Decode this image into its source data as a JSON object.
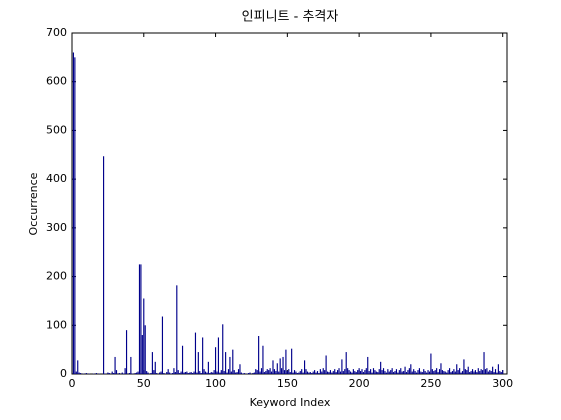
{
  "chart_data": {
    "type": "bar",
    "title": "인피니트 - 추격자",
    "xlabel": "Keyword Index",
    "ylabel": "Occurrence",
    "color": "#00008b",
    "xlim": [
      0,
      303
    ],
    "xticks": [
      0,
      50,
      100,
      150,
      200,
      250,
      300
    ],
    "ylim": [
      0,
      700
    ],
    "yticks": [
      0,
      100,
      200,
      300,
      400,
      500,
      600,
      700
    ],
    "grid": false,
    "x": [
      1,
      2,
      3,
      4,
      5,
      6,
      7,
      8,
      9,
      10,
      11,
      12,
      13,
      14,
      15,
      16,
      17,
      18,
      19,
      20,
      21,
      22,
      23,
      24,
      25,
      26,
      27,
      28,
      29,
      30,
      31,
      32,
      33,
      34,
      35,
      36,
      37,
      38,
      39,
      40,
      41,
      42,
      43,
      44,
      45,
      46,
      47,
      48,
      49,
      50,
      51,
      52,
      53,
      54,
      55,
      56,
      57,
      58,
      59,
      60,
      61,
      62,
      63,
      64,
      65,
      66,
      67,
      68,
      69,
      70,
      71,
      72,
      73,
      74,
      75,
      76,
      77,
      78,
      79,
      80,
      81,
      82,
      83,
      84,
      85,
      86,
      87,
      88,
      89,
      90,
      91,
      92,
      93,
      94,
      95,
      96,
      97,
      98,
      99,
      100,
      101,
      102,
      103,
      104,
      105,
      106,
      107,
      108,
      109,
      110,
      111,
      112,
      113,
      114,
      115,
      116,
      117,
      118,
      119,
      120,
      121,
      122,
      123,
      124,
      125,
      126,
      127,
      128,
      129,
      130,
      131,
      132,
      133,
      134,
      135,
      136,
      137,
      138,
      139,
      140,
      141,
      142,
      143,
      144,
      145,
      146,
      147,
      148,
      149,
      150,
      151,
      152,
      153,
      154,
      155,
      156,
      157,
      158,
      159,
      160,
      161,
      162,
      163,
      164,
      165,
      166,
      167,
      168,
      169,
      170,
      171,
      172,
      173,
      174,
      175,
      176,
      177,
      178,
      179,
      180,
      181,
      182,
      183,
      184,
      185,
      186,
      187,
      188,
      189,
      190,
      191,
      192,
      193,
      194,
      195,
      196,
      197,
      198,
      199,
      200,
      201,
      202,
      203,
      204,
      205,
      206,
      207,
      208,
      209,
      210,
      211,
      212,
      213,
      214,
      215,
      216,
      217,
      218,
      219,
      220,
      221,
      222,
      223,
      224,
      225,
      226,
      227,
      228,
      229,
      230,
      231,
      232,
      233,
      234,
      235,
      236,
      237,
      238,
      239,
      240,
      241,
      242,
      243,
      244,
      245,
      246,
      247,
      248,
      249,
      250,
      251,
      252,
      253,
      254,
      255,
      256,
      257,
      258,
      259,
      260,
      261,
      262,
      263,
      264,
      265,
      266,
      267,
      268,
      269,
      270,
      271,
      272,
      273,
      274,
      275,
      276,
      277,
      278,
      279,
      280,
      281,
      282,
      283,
      284,
      285,
      286,
      287,
      288,
      289,
      290,
      291,
      292,
      293,
      294,
      295,
      296,
      297,
      298,
      299,
      300
    ],
    "values": [
      660,
      650,
      5,
      28,
      3,
      2,
      0,
      1,
      0,
      2,
      0,
      1,
      0,
      0,
      1,
      0,
      2,
      0,
      1,
      0,
      0,
      447,
      1,
      0,
      3,
      2,
      0,
      5,
      2,
      35,
      8,
      0,
      2,
      0,
      3,
      1,
      12,
      90,
      0,
      2,
      35,
      1,
      0,
      2,
      3,
      5,
      225,
      225,
      80,
      155,
      100,
      6,
      3,
      0,
      2,
      45,
      8,
      25,
      2,
      0,
      3,
      5,
      118,
      2,
      0,
      4,
      10,
      3,
      1,
      2,
      12,
      4,
      182,
      8,
      2,
      5,
      58,
      3,
      4,
      5,
      2,
      3,
      4,
      2,
      5,
      85,
      3,
      45,
      6,
      2,
      75,
      10,
      5,
      3,
      25,
      2,
      4,
      3,
      8,
      55,
      5,
      75,
      3,
      8,
      102,
      6,
      45,
      3,
      10,
      35,
      5,
      50,
      8,
      3,
      4,
      10,
      20,
      3,
      1,
      2,
      0,
      1,
      2,
      3,
      0,
      2,
      3,
      10,
      8,
      78,
      5,
      12,
      58,
      4,
      6,
      10,
      8,
      12,
      5,
      28,
      10,
      6,
      22,
      5,
      32,
      12,
      35,
      8,
      50,
      6,
      10,
      4,
      52,
      3,
      8,
      5,
      2,
      3,
      6,
      10,
      3,
      28,
      10,
      5,
      3,
      4,
      2,
      5,
      8,
      3,
      6,
      2,
      10,
      5,
      12,
      8,
      38,
      5,
      4,
      8,
      3,
      6,
      10,
      4,
      8,
      12,
      5,
      30,
      6,
      10,
      45,
      12,
      8,
      5,
      3,
      10,
      6,
      4,
      8,
      12,
      6,
      10,
      4,
      8,
      12,
      35,
      6,
      10,
      3,
      12,
      8,
      5,
      4,
      10,
      25,
      8,
      12,
      6,
      3,
      10,
      5,
      8,
      12,
      4,
      6,
      10,
      3,
      8,
      12,
      5,
      6,
      15,
      4,
      8,
      12,
      20,
      5,
      10,
      6,
      3,
      8,
      12,
      5,
      4,
      10,
      6,
      3,
      8,
      5,
      42,
      10,
      6,
      8,
      12,
      4,
      10,
      22,
      8,
      6,
      5,
      3,
      8,
      12,
      4,
      6,
      10,
      5,
      20,
      8,
      12,
      3,
      6,
      30,
      10,
      8,
      15,
      4,
      6,
      10,
      5,
      8,
      4,
      12,
      6,
      10,
      8,
      45,
      10,
      12,
      5,
      8,
      6,
      15,
      4,
      10,
      3,
      20,
      6,
      4,
      8
    ]
  }
}
